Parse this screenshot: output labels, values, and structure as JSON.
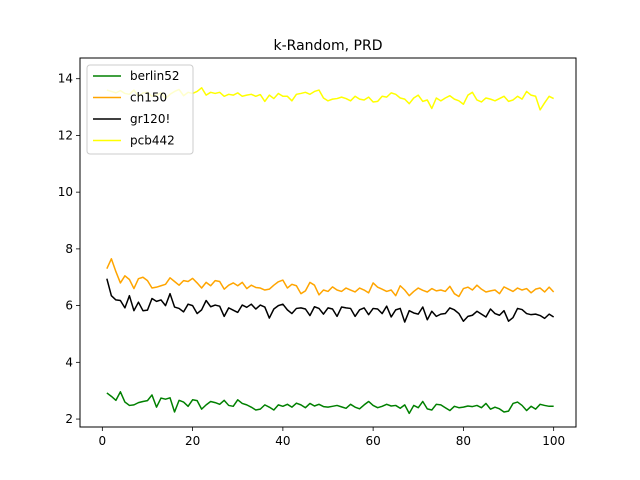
{
  "chart_data": {
    "type": "line",
    "title": "k-Random, PRD",
    "xlabel": "",
    "ylabel": "",
    "xlim": [
      -4.95,
      104.95
    ],
    "ylim": [
      1.72,
      14.73
    ],
    "xticks": [
      0,
      20,
      40,
      60,
      80,
      100
    ],
    "yticks": [
      2,
      4,
      6,
      8,
      10,
      12,
      14
    ],
    "grid": false,
    "legend_position": "upper-left",
    "x": [
      1,
      2,
      3,
      4,
      5,
      6,
      7,
      8,
      9,
      10,
      11,
      12,
      13,
      14,
      15,
      16,
      17,
      18,
      19,
      20,
      21,
      22,
      23,
      24,
      25,
      26,
      27,
      28,
      29,
      30,
      31,
      32,
      33,
      34,
      35,
      36,
      37,
      38,
      39,
      40,
      41,
      42,
      43,
      44,
      45,
      46,
      47,
      48,
      49,
      50,
      51,
      52,
      53,
      54,
      55,
      56,
      57,
      58,
      59,
      60,
      61,
      62,
      63,
      64,
      65,
      66,
      67,
      68,
      69,
      70,
      71,
      72,
      73,
      74,
      75,
      76,
      77,
      78,
      79,
      80,
      81,
      82,
      83,
      84,
      85,
      86,
      87,
      88,
      89,
      90,
      91,
      92,
      93,
      94,
      95,
      96,
      97,
      98,
      99,
      100
    ],
    "series": [
      {
        "name": "berlin52",
        "color": "#008000",
        "values": [
          2.92,
          2.8,
          2.66,
          2.96,
          2.6,
          2.48,
          2.5,
          2.58,
          2.62,
          2.65,
          2.85,
          2.42,
          2.74,
          2.7,
          2.75,
          2.25,
          2.66,
          2.6,
          2.45,
          2.68,
          2.65,
          2.35,
          2.5,
          2.62,
          2.58,
          2.52,
          2.66,
          2.48,
          2.45,
          2.68,
          2.55,
          2.5,
          2.42,
          2.32,
          2.35,
          2.5,
          2.42,
          2.32,
          2.5,
          2.45,
          2.52,
          2.42,
          2.56,
          2.5,
          2.4,
          2.55,
          2.46,
          2.52,
          2.44,
          2.42,
          2.45,
          2.48,
          2.43,
          2.38,
          2.52,
          2.42,
          2.36,
          2.5,
          2.62,
          2.48,
          2.4,
          2.45,
          2.52,
          2.46,
          2.48,
          2.38,
          2.5,
          2.2,
          2.48,
          2.4,
          2.62,
          2.36,
          2.32,
          2.52,
          2.5,
          2.4,
          2.3,
          2.45,
          2.4,
          2.42,
          2.46,
          2.44,
          2.48,
          2.4,
          2.55,
          2.35,
          2.42,
          2.36,
          2.25,
          2.28,
          2.55,
          2.6,
          2.48,
          2.3,
          2.45,
          2.35,
          2.52,
          2.48,
          2.45,
          2.45
        ]
      },
      {
        "name": "ch150",
        "color": "#ffa500",
        "values": [
          7.3,
          7.65,
          7.2,
          6.8,
          7.05,
          6.92,
          6.6,
          6.95,
          7.0,
          6.88,
          6.62,
          6.65,
          6.7,
          6.75,
          6.98,
          6.85,
          6.72,
          6.88,
          6.85,
          6.96,
          6.8,
          6.62,
          6.82,
          6.7,
          6.88,
          6.85,
          6.58,
          6.72,
          6.8,
          6.7,
          6.82,
          6.6,
          6.72,
          6.64,
          6.62,
          6.55,
          6.58,
          6.72,
          6.84,
          6.9,
          6.62,
          6.75,
          6.7,
          6.42,
          6.52,
          6.82,
          6.72,
          6.38,
          6.55,
          6.5,
          6.66,
          6.55,
          6.5,
          6.62,
          6.55,
          6.48,
          6.62,
          6.55,
          6.45,
          6.8,
          6.65,
          6.58,
          6.5,
          6.55,
          6.35,
          6.7,
          6.55,
          6.35,
          6.5,
          6.62,
          6.54,
          6.48,
          6.6,
          6.52,
          6.55,
          6.5,
          6.68,
          6.42,
          6.32,
          6.6,
          6.65,
          6.55,
          6.72,
          6.58,
          6.48,
          6.52,
          6.55,
          6.42,
          6.66,
          6.58,
          6.5,
          6.62,
          6.55,
          6.6,
          6.45,
          6.58,
          6.62,
          6.48,
          6.65,
          6.48
        ]
      },
      {
        "name": "gr120!",
        "color": "#000000",
        "values": [
          6.95,
          6.35,
          6.2,
          6.18,
          5.92,
          6.35,
          5.82,
          6.12,
          5.82,
          5.84,
          6.25,
          6.15,
          6.2,
          6.0,
          6.42,
          5.95,
          5.9,
          5.78,
          6.05,
          6.0,
          5.72,
          5.85,
          6.18,
          5.96,
          6.02,
          5.98,
          5.62,
          5.92,
          5.84,
          5.76,
          6.02,
          5.94,
          6.05,
          5.88,
          6.02,
          5.95,
          5.56,
          5.88,
          6.0,
          6.05,
          5.85,
          5.72,
          5.9,
          5.92,
          5.88,
          5.65,
          5.96,
          5.9,
          5.7,
          5.92,
          5.88,
          5.62,
          5.95,
          5.92,
          5.9,
          5.62,
          5.85,
          5.92,
          5.68,
          5.9,
          5.88,
          5.72,
          5.98,
          5.6,
          5.85,
          5.9,
          5.42,
          5.82,
          5.74,
          5.7,
          5.95,
          5.5,
          5.8,
          5.62,
          5.7,
          5.72,
          5.92,
          5.85,
          5.72,
          5.45,
          5.62,
          5.66,
          5.8,
          5.7,
          5.6,
          5.88,
          5.72,
          5.66,
          5.82,
          5.45,
          5.58,
          5.9,
          5.86,
          5.72,
          5.68,
          5.7,
          5.65,
          5.55,
          5.7,
          5.6
        ]
      },
      {
        "name": "pcb442",
        "color": "#ffff00",
        "values": [
          13.6,
          13.55,
          13.5,
          13.58,
          13.48,
          13.45,
          13.6,
          13.38,
          13.5,
          13.52,
          13.38,
          13.42,
          13.5,
          13.3,
          13.45,
          13.55,
          13.62,
          13.4,
          13.52,
          13.48,
          13.55,
          13.68,
          13.42,
          13.52,
          13.48,
          13.52,
          13.38,
          13.45,
          13.42,
          13.5,
          13.38,
          13.42,
          13.45,
          13.38,
          13.44,
          13.2,
          13.42,
          13.3,
          13.48,
          13.38,
          13.38,
          13.22,
          13.45,
          13.48,
          13.52,
          13.45,
          13.55,
          13.6,
          13.32,
          13.22,
          13.28,
          13.3,
          13.35,
          13.3,
          13.22,
          13.38,
          13.28,
          13.25,
          13.35,
          13.18,
          13.2,
          13.38,
          13.35,
          13.5,
          13.45,
          13.32,
          13.28,
          13.12,
          13.32,
          13.42,
          13.2,
          13.25,
          12.95,
          13.32,
          13.22,
          13.32,
          13.4,
          13.28,
          13.22,
          13.1,
          13.42,
          13.52,
          13.25,
          13.18,
          13.32,
          13.28,
          13.22,
          13.3,
          13.38,
          13.2,
          13.25,
          13.38,
          13.28,
          13.55,
          13.42,
          13.38,
          12.9,
          13.15,
          13.38,
          13.3
        ]
      }
    ]
  }
}
